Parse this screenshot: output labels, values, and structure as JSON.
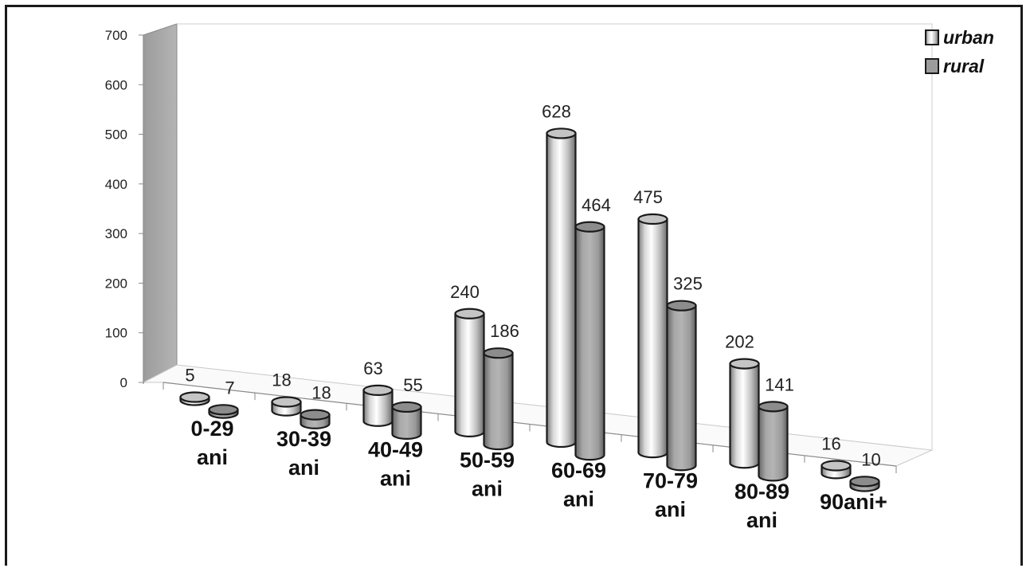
{
  "chart_data": {
    "type": "bar",
    "categories": [
      [
        "0-29",
        "ani"
      ],
      [
        "30-39",
        "ani"
      ],
      [
        "40-49",
        "ani"
      ],
      [
        "50-59",
        "ani"
      ],
      [
        "60-69",
        "ani"
      ],
      [
        "70-79",
        "ani"
      ],
      [
        "80-89",
        "ani"
      ],
      [
        "90ani+"
      ]
    ],
    "series": [
      {
        "name": "urban",
        "values": [
          5,
          18,
          63,
          240,
          628,
          475,
          202,
          16
        ],
        "color": "#d9d9d9"
      },
      {
        "name": "rural",
        "values": [
          7,
          18,
          55,
          186,
          464,
          325,
          141,
          10
        ],
        "color": "#a6a6a6"
      }
    ],
    "yticks": [
      "0",
      "100",
      "200",
      "300",
      "400",
      "500",
      "600",
      "700"
    ],
    "ylim": [
      0,
      700
    ],
    "grid": false,
    "legend_position": "top-right",
    "style": "3d-cylinder"
  }
}
